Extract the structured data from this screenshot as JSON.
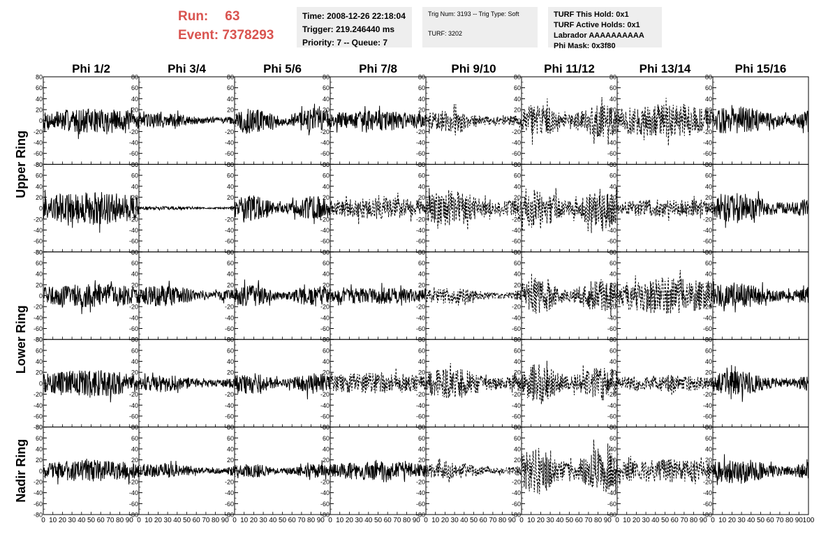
{
  "header": {
    "run_label": "Run:",
    "run_value": "63",
    "event_label": "Event:",
    "event_value": "7378293",
    "time": "Time: 2008-12-26 22:18:04",
    "trigger": "Trigger: 219.246440 ms",
    "priority": "Priority: 7 -- Queue: 7",
    "trig_num": "Trig Num: 3193 -- Trig Type: Soft",
    "turf": "TURF: 3202",
    "turf_hold": "TURF This Hold: 0x1",
    "turf_active": "TURF Active Holds: 0x1",
    "labrador": "Labrador AAAAAAAAAA",
    "phi_mask": "Phi Mask: 0x3f80"
  },
  "chart_data": {
    "type": "line",
    "columns": [
      "Phi 1/2",
      "Phi 3/4",
      "Phi 5/6",
      "Phi 7/8",
      "Phi 9/10",
      "Phi 11/12",
      "Phi 13/14",
      "Phi 15/16"
    ],
    "row_labels": [
      "Upper Ring",
      "Lower Ring",
      "Nadir Ring"
    ],
    "xlim": [
      0,
      100
    ],
    "ylim": [
      -80,
      80
    ],
    "x_ticks": [
      0,
      10,
      20,
      30,
      40,
      50,
      60,
      70,
      80,
      90
    ],
    "x_tick_labels_last": [
      "0",
      "10",
      "20",
      "30",
      "40",
      "50",
      "60",
      "70",
      "80",
      "90",
      "100"
    ],
    "y_ticks": [
      80,
      60,
      40,
      20,
      0,
      -20,
      -40,
      -60,
      -80
    ],
    "panels": [
      {
        "row": 0,
        "col": 0,
        "style": "solid",
        "amplitude": 20
      },
      {
        "row": 0,
        "col": 1,
        "style": "solid",
        "amplitude": 13
      },
      {
        "row": 0,
        "col": 2,
        "style": "solid",
        "amplitude": 22
      },
      {
        "row": 0,
        "col": 3,
        "style": "solid",
        "amplitude": 17
      },
      {
        "row": 0,
        "col": 4,
        "style": "dashed",
        "amplitude": 18
      },
      {
        "row": 0,
        "col": 5,
        "style": "dashed",
        "amplitude": 28
      },
      {
        "row": 0,
        "col": 6,
        "style": "dashed",
        "amplitude": 28
      },
      {
        "row": 0,
        "col": 7,
        "style": "solid",
        "amplitude": 24
      },
      {
        "row": 1,
        "col": 0,
        "style": "solid",
        "amplitude": 28
      },
      {
        "row": 1,
        "col": 1,
        "style": "solid",
        "amplitude": 3
      },
      {
        "row": 1,
        "col": 2,
        "style": "solid",
        "amplitude": 22
      },
      {
        "row": 1,
        "col": 3,
        "style": "dashed",
        "amplitude": 18
      },
      {
        "row": 1,
        "col": 4,
        "style": "dashed",
        "amplitude": 30
      },
      {
        "row": 1,
        "col": 5,
        "style": "dashed",
        "amplitude": 35
      },
      {
        "row": 1,
        "col": 6,
        "style": "dashed",
        "amplitude": 15
      },
      {
        "row": 1,
        "col": 7,
        "style": "solid",
        "amplitude": 25
      },
      {
        "row": 2,
        "col": 0,
        "style": "solid",
        "amplitude": 20
      },
      {
        "row": 2,
        "col": 1,
        "style": "solid",
        "amplitude": 18
      },
      {
        "row": 2,
        "col": 2,
        "style": "solid",
        "amplitude": 18
      },
      {
        "row": 2,
        "col": 3,
        "style": "solid",
        "amplitude": 14
      },
      {
        "row": 2,
        "col": 4,
        "style": "dashed",
        "amplitude": 14
      },
      {
        "row": 2,
        "col": 5,
        "style": "dashed",
        "amplitude": 30
      },
      {
        "row": 2,
        "col": 6,
        "style": "dashed",
        "amplitude": 30
      },
      {
        "row": 2,
        "col": 7,
        "style": "solid",
        "amplitude": 22
      },
      {
        "row": 3,
        "col": 0,
        "style": "solid",
        "amplitude": 22
      },
      {
        "row": 3,
        "col": 1,
        "style": "solid",
        "amplitude": 14
      },
      {
        "row": 3,
        "col": 2,
        "style": "solid",
        "amplitude": 18
      },
      {
        "row": 3,
        "col": 3,
        "style": "dashed",
        "amplitude": 18
      },
      {
        "row": 3,
        "col": 4,
        "style": "dashed",
        "amplitude": 26
      },
      {
        "row": 3,
        "col": 5,
        "style": "dashed",
        "amplitude": 32
      },
      {
        "row": 3,
        "col": 6,
        "style": "dashed",
        "amplitude": 14
      },
      {
        "row": 3,
        "col": 7,
        "style": "solid",
        "amplitude": 20
      },
      {
        "row": 4,
        "col": 0,
        "style": "solid",
        "amplitude": 18
      },
      {
        "row": 4,
        "col": 1,
        "style": "solid",
        "amplitude": 12
      },
      {
        "row": 4,
        "col": 2,
        "style": "solid",
        "amplitude": 12
      },
      {
        "row": 4,
        "col": 3,
        "style": "solid",
        "amplitude": 16
      },
      {
        "row": 4,
        "col": 4,
        "style": "dashed",
        "amplitude": 14
      },
      {
        "row": 4,
        "col": 5,
        "style": "dashed",
        "amplitude": 38
      },
      {
        "row": 4,
        "col": 6,
        "style": "dashed",
        "amplitude": 20
      },
      {
        "row": 4,
        "col": 7,
        "style": "solid",
        "amplitude": 22
      }
    ]
  }
}
